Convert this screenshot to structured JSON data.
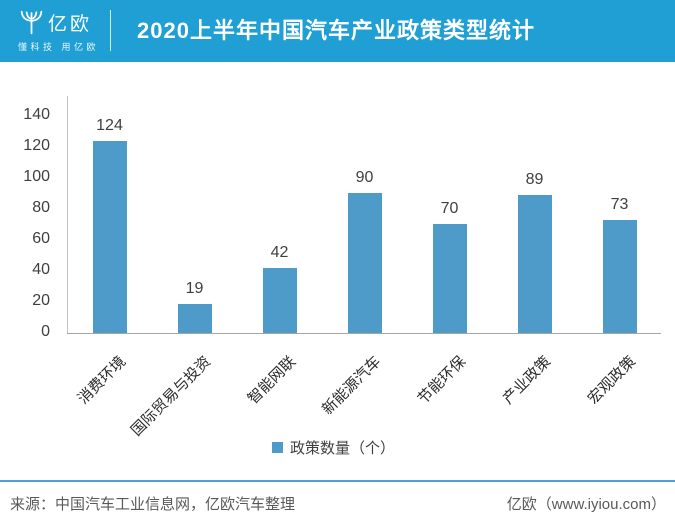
{
  "header": {
    "logo_text": "亿欧",
    "logo_tagline": "懂科技 用亿欧",
    "title": "2020上半年中国汽车产业政策类型统计",
    "background_color": "#1F9FD3"
  },
  "chart_data": {
    "type": "bar",
    "title": "2020上半年中国汽车产业政策类型统计",
    "categories": [
      "消费环境",
      "国际贸易与投资",
      "智能网联",
      "新能源汽车",
      "节能环保",
      "产业政策",
      "宏观政策"
    ],
    "values": [
      124,
      19,
      42,
      90,
      70,
      89,
      73
    ],
    "series_label": "政策数量（个）",
    "xlabel": "",
    "ylabel": "",
    "ylim": [
      0,
      140
    ],
    "yticks": [
      0,
      20,
      40,
      60,
      80,
      100,
      120,
      140
    ],
    "bar_color": "#4E9BCA",
    "grid": false,
    "legend_position": "bottom",
    "category_label_rotation_deg": 45
  },
  "legend": {
    "label": "政策数量（个）",
    "swatch_color": "#4E9BCA"
  },
  "footer": {
    "source": "来源：中国汽车工业信息网，亿欧汽车整理",
    "brand": "亿欧（www.iyiou.com）"
  }
}
